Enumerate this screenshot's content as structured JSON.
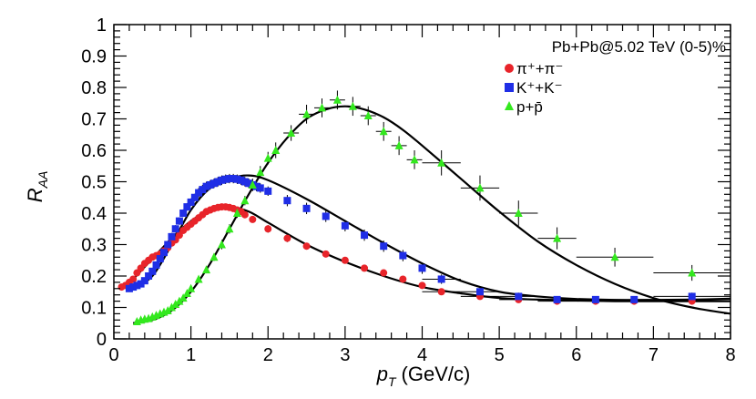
{
  "chart_data": {
    "type": "scatter",
    "title": "",
    "xlabel_main": "p",
    "xlabel_sub": "T",
    "xlabel_unit": "(GeV/c)",
    "ylabel_main": "R",
    "ylabel_sub": "AA",
    "xlim": [
      0,
      8
    ],
    "ylim": [
      0,
      1
    ],
    "x_ticks": [
      "0",
      "1",
      "2",
      "3",
      "4",
      "5",
      "6",
      "7",
      "8"
    ],
    "y_ticks": [
      "0",
      "0.1",
      "0.2",
      "0.3",
      "0.4",
      "0.5",
      "0.6",
      "0.7",
      "0.8",
      "0.9",
      "1"
    ],
    "legend": {
      "placement": "top-right",
      "header": "Pb+Pb@5.02 TeV (0-5)%",
      "entries": [
        {
          "series": "pion",
          "label": "π⁺+π⁻"
        },
        {
          "series": "kaon",
          "label": "K⁺+K⁻"
        },
        {
          "series": "proton",
          "label": "p+p̄"
        }
      ]
    },
    "series": [
      {
        "name": "pion",
        "marker": "circle",
        "color": "#e8242a",
        "x": [
          0.1,
          0.15,
          0.2,
          0.25,
          0.3,
          0.35,
          0.4,
          0.45,
          0.5,
          0.55,
          0.6,
          0.65,
          0.7,
          0.75,
          0.8,
          0.85,
          0.9,
          0.95,
          1.0,
          1.05,
          1.1,
          1.15,
          1.2,
          1.25,
          1.3,
          1.35,
          1.4,
          1.45,
          1.5,
          1.55,
          1.6,
          1.65,
          1.7,
          1.8,
          2.0,
          2.25,
          2.5,
          2.75,
          3.0,
          3.25,
          3.5,
          3.75,
          4.0,
          4.25,
          4.75,
          5.25,
          5.75,
          6.25,
          6.75,
          7.5
        ],
        "y": [
          0.165,
          0.17,
          0.18,
          0.19,
          0.21,
          0.225,
          0.24,
          0.25,
          0.26,
          0.265,
          0.27,
          0.28,
          0.29,
          0.305,
          0.315,
          0.33,
          0.345,
          0.355,
          0.365,
          0.375,
          0.385,
          0.395,
          0.405,
          0.41,
          0.415,
          0.418,
          0.42,
          0.42,
          0.418,
          0.415,
          0.41,
          0.405,
          0.395,
          0.38,
          0.35,
          0.32,
          0.295,
          0.27,
          0.25,
          0.225,
          0.21,
          0.19,
          0.17,
          0.15,
          0.135,
          0.125,
          0.12,
          0.12,
          0.12,
          0.12
        ],
        "xerr": [
          0,
          0,
          0,
          0,
          0,
          0,
          0,
          0,
          0,
          0,
          0,
          0,
          0,
          0,
          0,
          0,
          0,
          0,
          0,
          0,
          0,
          0,
          0,
          0,
          0,
          0,
          0,
          0,
          0,
          0,
          0,
          0,
          0,
          0,
          0,
          0,
          0,
          0,
          0,
          0,
          0,
          0,
          0,
          0.25,
          0.25,
          0.25,
          0.25,
          0.25,
          0.25,
          0.5
        ],
        "yerr": [
          0.008,
          0.008,
          0.008,
          0.008,
          0.008,
          0.008,
          0.008,
          0.008,
          0.008,
          0.008,
          0.008,
          0.008,
          0.008,
          0.008,
          0.008,
          0.008,
          0.008,
          0.008,
          0.008,
          0.008,
          0.01,
          0.01,
          0.01,
          0.01,
          0.01,
          0.01,
          0.01,
          0.01,
          0.01,
          0.01,
          0.01,
          0.01,
          0.01,
          0.01,
          0.012,
          0.012,
          0.01,
          0.01,
          0.01,
          0.01,
          0.01,
          0.008,
          0.008,
          0.008,
          0.008,
          0.008,
          0.008,
          0.008,
          0.008,
          0.008
        ]
      },
      {
        "name": "kaon",
        "marker": "square",
        "color": "#1f2ee6",
        "x": [
          0.2,
          0.25,
          0.3,
          0.35,
          0.4,
          0.45,
          0.5,
          0.55,
          0.6,
          0.65,
          0.7,
          0.75,
          0.8,
          0.85,
          0.9,
          0.95,
          1.0,
          1.05,
          1.1,
          1.15,
          1.2,
          1.25,
          1.3,
          1.35,
          1.4,
          1.45,
          1.5,
          1.55,
          1.6,
          1.65,
          1.7,
          1.75,
          1.8,
          1.85,
          1.9,
          2.0,
          2.25,
          2.5,
          2.75,
          3.0,
          3.25,
          3.5,
          3.75,
          4.0,
          4.25,
          4.75,
          5.25,
          5.75,
          6.25,
          6.75,
          7.5
        ],
        "y": [
          0.16,
          0.165,
          0.17,
          0.175,
          0.185,
          0.2,
          0.215,
          0.235,
          0.255,
          0.275,
          0.3,
          0.325,
          0.35,
          0.375,
          0.4,
          0.42,
          0.435,
          0.45,
          0.465,
          0.475,
          0.485,
          0.49,
          0.495,
          0.5,
          0.505,
          0.508,
          0.51,
          0.51,
          0.508,
          0.505,
          0.5,
          0.495,
          0.49,
          0.485,
          0.48,
          0.47,
          0.44,
          0.415,
          0.39,
          0.36,
          0.33,
          0.295,
          0.265,
          0.225,
          0.19,
          0.15,
          0.135,
          0.125,
          0.125,
          0.125,
          0.135
        ],
        "xerr": [
          0,
          0,
          0,
          0,
          0,
          0,
          0,
          0,
          0,
          0,
          0,
          0,
          0,
          0,
          0,
          0,
          0,
          0,
          0,
          0,
          0,
          0,
          0,
          0,
          0,
          0,
          0,
          0,
          0,
          0,
          0,
          0,
          0,
          0,
          0,
          0,
          0,
          0,
          0,
          0,
          0,
          0,
          0,
          0,
          0.25,
          0.25,
          0.25,
          0.25,
          0.25,
          0.25,
          0.5
        ],
        "yerr": [
          0.01,
          0.01,
          0.01,
          0.01,
          0.01,
          0.01,
          0.01,
          0.01,
          0.01,
          0.01,
          0.012,
          0.012,
          0.012,
          0.012,
          0.012,
          0.012,
          0.012,
          0.012,
          0.015,
          0.015,
          0.015,
          0.015,
          0.015,
          0.015,
          0.015,
          0.015,
          0.015,
          0.015,
          0.015,
          0.015,
          0.015,
          0.015,
          0.015,
          0.015,
          0.015,
          0.015,
          0.018,
          0.018,
          0.018,
          0.018,
          0.018,
          0.018,
          0.018,
          0.018,
          0.015,
          0.012,
          0.012,
          0.01,
          0.01,
          0.01,
          0.012
        ]
      },
      {
        "name": "proton",
        "marker": "triangle",
        "color": "#33e81e",
        "x": [
          0.3,
          0.35,
          0.4,
          0.45,
          0.5,
          0.55,
          0.6,
          0.65,
          0.7,
          0.75,
          0.8,
          0.85,
          0.9,
          0.95,
          1.0,
          1.1,
          1.2,
          1.3,
          1.4,
          1.5,
          1.6,
          1.7,
          1.8,
          1.9,
          2.0,
          2.1,
          2.3,
          2.5,
          2.7,
          2.9,
          3.1,
          3.3,
          3.5,
          3.7,
          3.9,
          4.25,
          4.75,
          5.25,
          5.75,
          6.5,
          7.5
        ],
        "y": [
          0.055,
          0.06,
          0.063,
          0.065,
          0.07,
          0.075,
          0.08,
          0.085,
          0.09,
          0.1,
          0.11,
          0.12,
          0.13,
          0.145,
          0.16,
          0.19,
          0.22,
          0.26,
          0.3,
          0.35,
          0.4,
          0.44,
          0.49,
          0.53,
          0.575,
          0.6,
          0.655,
          0.715,
          0.735,
          0.76,
          0.74,
          0.71,
          0.66,
          0.615,
          0.57,
          0.56,
          0.48,
          0.4,
          0.32,
          0.26,
          0.21
        ],
        "xerr": [
          0,
          0,
          0,
          0,
          0,
          0,
          0,
          0,
          0,
          0,
          0,
          0,
          0,
          0,
          0,
          0,
          0,
          0,
          0,
          0,
          0,
          0,
          0,
          0,
          0,
          0,
          0.1,
          0.1,
          0.1,
          0.1,
          0.1,
          0.1,
          0.1,
          0.1,
          0.1,
          0.25,
          0.25,
          0.25,
          0.25,
          0.5,
          0.5
        ],
        "yerr": [
          0.005,
          0.005,
          0.005,
          0.005,
          0.005,
          0.006,
          0.006,
          0.006,
          0.006,
          0.006,
          0.008,
          0.008,
          0.008,
          0.008,
          0.008,
          0.01,
          0.01,
          0.012,
          0.015,
          0.015,
          0.015,
          0.015,
          0.02,
          0.02,
          0.02,
          0.025,
          0.025,
          0.03,
          0.03,
          0.03,
          0.03,
          0.03,
          0.03,
          0.03,
          0.03,
          0.04,
          0.04,
          0.04,
          0.035,
          0.03,
          0.025
        ]
      }
    ],
    "fits": [
      {
        "name": "pion-fit",
        "color": "#000000",
        "x": [
          0.25,
          0.5,
          0.75,
          1.0,
          1.25,
          1.5,
          1.75,
          2.0,
          2.5,
          3.0,
          3.5,
          4.0,
          4.5,
          5.0,
          5.5,
          6.0,
          6.5,
          7.0,
          7.5,
          8.0
        ],
        "y": [
          0.19,
          0.255,
          0.32,
          0.375,
          0.41,
          0.42,
          0.405,
          0.37,
          0.3,
          0.245,
          0.2,
          0.165,
          0.145,
          0.13,
          0.125,
          0.122,
          0.12,
          0.12,
          0.12,
          0.12
        ]
      },
      {
        "name": "kaon-fit",
        "color": "#000000",
        "x": [
          0.25,
          0.5,
          0.75,
          1.0,
          1.25,
          1.5,
          1.75,
          2.0,
          2.5,
          3.0,
          3.5,
          4.0,
          4.5,
          5.0,
          5.5,
          6.0,
          6.5,
          7.0,
          7.5,
          8.0
        ],
        "y": [
          0.16,
          0.2,
          0.3,
          0.41,
          0.48,
          0.51,
          0.52,
          0.505,
          0.445,
          0.375,
          0.305,
          0.24,
          0.185,
          0.15,
          0.135,
          0.127,
          0.124,
          0.124,
          0.125,
          0.128
        ]
      },
      {
        "name": "proton-fit",
        "color": "#000000",
        "x": [
          0.25,
          0.5,
          0.75,
          1.0,
          1.25,
          1.5,
          1.75,
          2.0,
          2.25,
          2.5,
          2.75,
          3.0,
          3.25,
          3.5,
          3.75,
          4.0,
          4.5,
          5.0,
          5.5,
          6.0,
          6.5,
          7.0,
          7.5,
          8.0
        ],
        "y": [
          0.05,
          0.06,
          0.09,
          0.15,
          0.24,
          0.35,
          0.46,
          0.56,
          0.64,
          0.7,
          0.73,
          0.74,
          0.73,
          0.705,
          0.665,
          0.615,
          0.51,
          0.405,
          0.31,
          0.235,
          0.175,
          0.13,
          0.1,
          0.08
        ]
      }
    ]
  }
}
